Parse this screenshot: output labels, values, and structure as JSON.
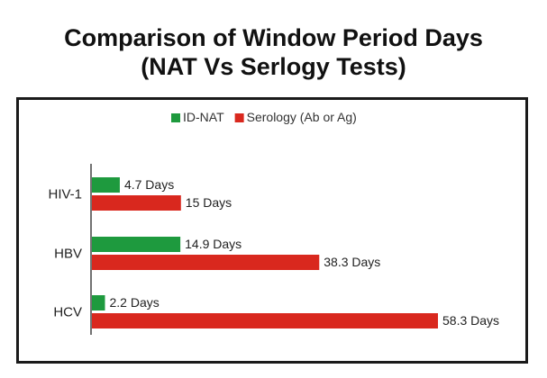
{
  "title_line1": "Comparison of Window Period Days",
  "title_line2": "(NAT Vs Serlogy Tests)",
  "chart_data": {
    "type": "bar",
    "orientation": "horizontal",
    "categories": [
      "HIV-1",
      "HBV",
      "HCV"
    ],
    "series": [
      {
        "name": "ID-NAT",
        "values": [
          4.7,
          14.9,
          2.2
        ],
        "labels": [
          "4.7 Days",
          "14.9 Days",
          "2.2 Days"
        ],
        "color": "#1e9a3e"
      },
      {
        "name": "Serology (Ab or Ag)",
        "values": [
          15,
          38.3,
          58.3
        ],
        "labels": [
          "15 Days",
          "38.3 Days",
          "58.3 Days"
        ],
        "color": "#d9281e"
      }
    ],
    "xlim": [
      0,
      60
    ],
    "grid": false,
    "legend": "top-center"
  }
}
